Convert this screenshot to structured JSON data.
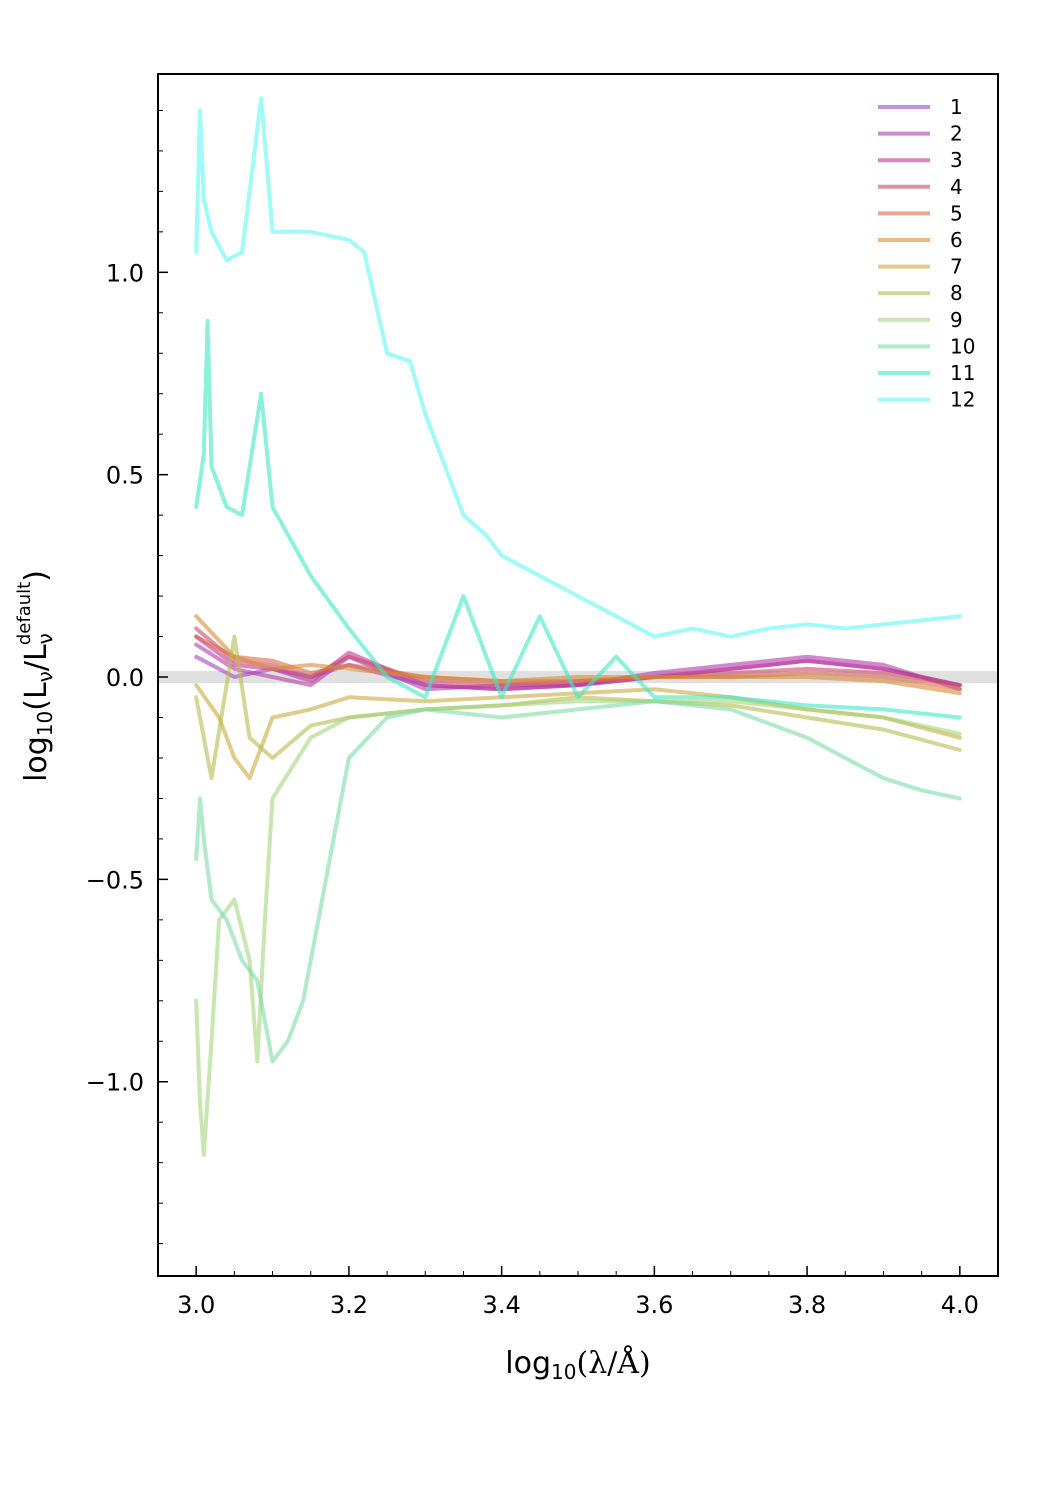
{
  "chart_data": {
    "type": "line",
    "title": "",
    "xlabel_parts": {
      "prefix": "log",
      "sub": "10",
      "body": "(λ/Å)"
    },
    "ylabel_parts": {
      "prefix": "log",
      "sub": "10",
      "body1": "(L",
      "nu": "ν",
      "slash": "/L",
      "sup": "default",
      "close": ")"
    },
    "xlim": [
      2.95,
      4.05
    ],
    "ylim": [
      -1.48,
      1.49
    ],
    "xticks": [
      3.0,
      3.2,
      3.4,
      3.6,
      3.8,
      4.0
    ],
    "xtick_labels": [
      "3.0",
      "3.2",
      "3.4",
      "3.6",
      "3.8",
      "4.0"
    ],
    "yticks": [
      -1.0,
      -0.5,
      0.0,
      0.5,
      1.0
    ],
    "ytick_labels": [
      "−1.0",
      "−0.5",
      "0.0",
      "0.5",
      "1.0"
    ],
    "reference_band": {
      "y": 0.0,
      "halfwidth": 0.015,
      "color": "#bbbbbb"
    },
    "legend_position": "top-right",
    "series": [
      {
        "name": "1",
        "color": "#a445c8",
        "x": [
          3.0,
          3.05,
          3.1,
          3.15,
          3.2,
          3.3,
          3.4,
          3.5,
          3.6,
          3.7,
          3.8,
          3.9,
          4.0
        ],
        "y": [
          0.05,
          0.0,
          0.02,
          0.0,
          0.03,
          -0.02,
          -0.03,
          -0.02,
          0.0,
          0.02,
          0.04,
          0.02,
          -0.02
        ]
      },
      {
        "name": "2",
        "color": "#b13caa",
        "x": [
          3.0,
          3.05,
          3.1,
          3.15,
          3.2,
          3.3,
          3.4,
          3.5,
          3.6,
          3.7,
          3.8,
          3.9,
          4.0
        ],
        "y": [
          0.08,
          0.02,
          0.0,
          -0.02,
          0.05,
          -0.03,
          -0.02,
          -0.02,
          0.01,
          0.03,
          0.05,
          0.03,
          -0.03
        ]
      },
      {
        "name": "3",
        "color": "#c2348e",
        "x": [
          3.0,
          3.05,
          3.1,
          3.15,
          3.2,
          3.3,
          3.4,
          3.5,
          3.6,
          3.7,
          3.8,
          3.9,
          4.0
        ],
        "y": [
          0.1,
          0.03,
          0.02,
          -0.01,
          0.06,
          -0.02,
          -0.03,
          -0.02,
          0.0,
          0.02,
          0.04,
          0.02,
          -0.02
        ]
      },
      {
        "name": "4",
        "color": "#cc4a6a",
        "x": [
          3.0,
          3.05,
          3.1,
          3.15,
          3.2,
          3.3,
          3.4,
          3.5,
          3.6,
          3.7,
          3.8,
          3.9,
          4.0
        ],
        "y": [
          0.12,
          0.04,
          0.03,
          0.0,
          0.05,
          -0.01,
          -0.02,
          -0.01,
          0.0,
          0.01,
          0.02,
          0.01,
          -0.02
        ]
      },
      {
        "name": "5",
        "color": "#d96a4a",
        "x": [
          3.0,
          3.05,
          3.1,
          3.15,
          3.2,
          3.3,
          3.4,
          3.5,
          3.6,
          3.7,
          3.8,
          3.9,
          4.0
        ],
        "y": [
          0.1,
          0.05,
          0.04,
          0.01,
          0.03,
          0.0,
          -0.01,
          -0.01,
          0.0,
          0.0,
          0.01,
          0.0,
          -0.03
        ]
      },
      {
        "name": "6",
        "color": "#d98a30",
        "x": [
          3.0,
          3.05,
          3.1,
          3.15,
          3.2,
          3.3,
          3.4,
          3.5,
          3.6,
          3.7,
          3.8,
          3.9,
          4.0
        ],
        "y": [
          0.15,
          0.05,
          0.02,
          0.03,
          0.02,
          0.0,
          -0.01,
          0.0,
          0.0,
          0.0,
          0.0,
          -0.01,
          -0.04
        ]
      },
      {
        "name": "7",
        "color": "#c8aa40",
        "x": [
          3.0,
          3.03,
          3.05,
          3.07,
          3.1,
          3.15,
          3.2,
          3.3,
          3.4,
          3.5,
          3.6,
          3.7,
          3.8,
          3.9,
          4.0
        ],
        "y": [
          -0.02,
          -0.1,
          -0.2,
          -0.25,
          -0.1,
          -0.08,
          -0.05,
          -0.06,
          -0.05,
          -0.04,
          -0.03,
          -0.05,
          -0.08,
          -0.1,
          -0.15
        ]
      },
      {
        "name": "8",
        "color": "#b8bb50",
        "x": [
          3.0,
          3.02,
          3.05,
          3.07,
          3.1,
          3.15,
          3.2,
          3.3,
          3.4,
          3.5,
          3.6,
          3.7,
          3.8,
          3.9,
          4.0
        ],
        "y": [
          -0.05,
          -0.25,
          0.1,
          -0.15,
          -0.2,
          -0.12,
          -0.1,
          -0.08,
          -0.07,
          -0.05,
          -0.06,
          -0.07,
          -0.1,
          -0.13,
          -0.18
        ]
      },
      {
        "name": "9",
        "color": "#a3d67a",
        "x": [
          3.0,
          3.005,
          3.01,
          3.02,
          3.03,
          3.05,
          3.07,
          3.08,
          3.09,
          3.1,
          3.15,
          3.2,
          3.3,
          3.4,
          3.5,
          3.6,
          3.7,
          3.8,
          3.9,
          4.0
        ],
        "y": [
          -0.8,
          -1.05,
          -1.18,
          -0.9,
          -0.6,
          -0.55,
          -0.7,
          -0.95,
          -0.6,
          -0.3,
          -0.15,
          -0.1,
          -0.08,
          -0.07,
          -0.06,
          -0.06,
          -0.06,
          -0.08,
          -0.1,
          -0.14
        ]
      },
      {
        "name": "10",
        "color": "#7ddca6",
        "x": [
          3.0,
          3.005,
          3.01,
          3.02,
          3.04,
          3.06,
          3.08,
          3.1,
          3.12,
          3.14,
          3.16,
          3.18,
          3.2,
          3.25,
          3.3,
          3.4,
          3.5,
          3.6,
          3.7,
          3.8,
          3.85,
          3.9,
          3.95,
          4.0
        ],
        "y": [
          -0.45,
          -0.3,
          -0.4,
          -0.55,
          -0.6,
          -0.7,
          -0.75,
          -0.95,
          -0.9,
          -0.8,
          -0.6,
          -0.4,
          -0.2,
          -0.1,
          -0.08,
          -0.1,
          -0.08,
          -0.06,
          -0.08,
          -0.15,
          -0.2,
          -0.25,
          -0.28,
          -0.3
        ]
      },
      {
        "name": "11",
        "color": "#3ee8c4",
        "x": [
          3.0,
          3.01,
          3.015,
          3.02,
          3.04,
          3.06,
          3.085,
          3.1,
          3.15,
          3.2,
          3.25,
          3.3,
          3.35,
          3.4,
          3.45,
          3.5,
          3.55,
          3.6,
          3.7,
          3.8,
          3.9,
          4.0
        ],
        "y": [
          0.42,
          0.55,
          0.88,
          0.52,
          0.42,
          0.4,
          0.7,
          0.42,
          0.25,
          0.12,
          0.0,
          -0.05,
          0.2,
          -0.05,
          0.15,
          -0.05,
          0.05,
          -0.05,
          -0.05,
          -0.07,
          -0.08,
          -0.1
        ]
      },
      {
        "name": "12",
        "color": "#5ff6f4",
        "x": [
          3.0,
          3.005,
          3.01,
          3.02,
          3.04,
          3.06,
          3.085,
          3.1,
          3.15,
          3.2,
          3.22,
          3.25,
          3.28,
          3.3,
          3.32,
          3.35,
          3.38,
          3.4,
          3.45,
          3.5,
          3.55,
          3.6,
          3.65,
          3.7,
          3.75,
          3.8,
          3.85,
          3.9,
          3.95,
          4.0
        ],
        "y": [
          1.05,
          1.4,
          1.18,
          1.1,
          1.03,
          1.05,
          1.43,
          1.1,
          1.1,
          1.08,
          1.05,
          0.8,
          0.78,
          0.65,
          0.55,
          0.4,
          0.35,
          0.3,
          0.25,
          0.2,
          0.15,
          0.1,
          0.12,
          0.1,
          0.12,
          0.13,
          0.12,
          0.13,
          0.14,
          0.15
        ]
      }
    ]
  }
}
